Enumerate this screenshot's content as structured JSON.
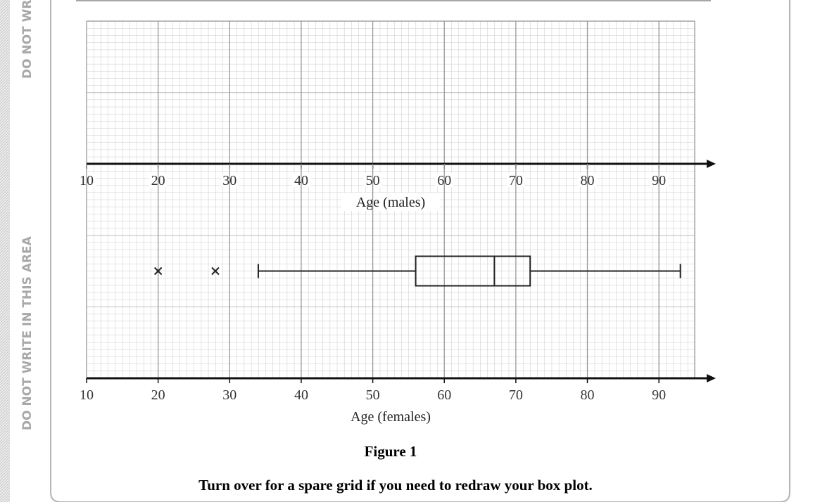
{
  "margin_labels": [
    "DO NOT WRITE IN THIS AREA",
    "DO NOT WRITE IN THIS AREA"
  ],
  "chart_data": [
    {
      "type": "boxplot",
      "xlabel": "Age (males)",
      "xlim": [
        10,
        95
      ],
      "xticks": [
        10,
        20,
        30,
        40,
        50,
        60,
        70,
        80,
        90
      ],
      "grid": true,
      "color": "#222222",
      "boxes": []
    },
    {
      "type": "boxplot",
      "xlabel": "Age (females)",
      "xlim": [
        10,
        95
      ],
      "xticks": [
        10,
        20,
        30,
        40,
        50,
        60,
        70,
        80,
        90
      ],
      "grid": true,
      "color": "#222222",
      "boxes": [
        {
          "whisker_low": 34,
          "q1": 56,
          "median": 67,
          "q3": 72,
          "whisker_high": 93,
          "outliers": [
            20,
            28
          ]
        }
      ]
    }
  ],
  "figure_caption": "Figure 1",
  "instruction": "Turn over for a spare grid if you need to redraw your box plot."
}
